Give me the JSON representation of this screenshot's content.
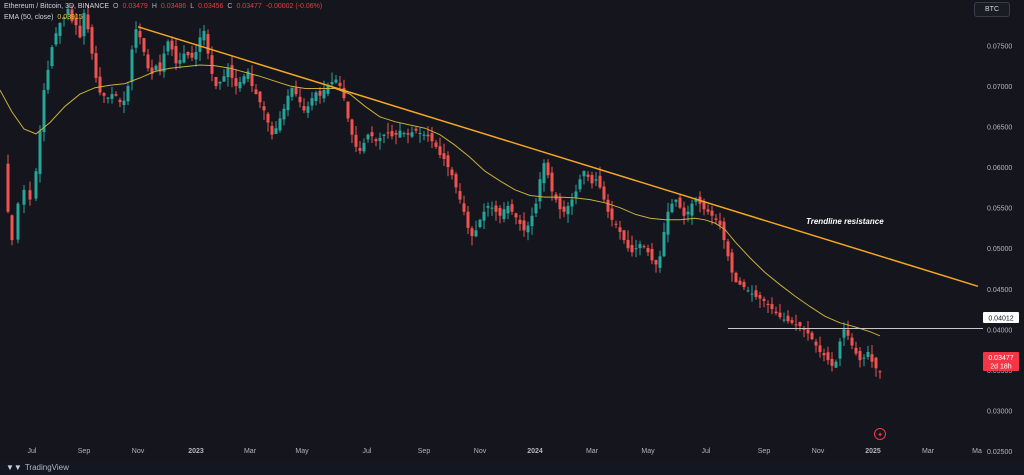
{
  "legend": {
    "symbol": "Ethereum / Bitcoin, 3D, BINANCE",
    "o_label": "O",
    "o": "0.03479",
    "h_label": "H",
    "h": "0.03486",
    "l_label": "L",
    "l": "0.03456",
    "c_label": "C",
    "c": "0.03477",
    "change": "-0.00002 (-0.06%)",
    "ema_label": "EMA (50, close)",
    "ema_value": "0.03915"
  },
  "badge": "BTC",
  "footer": {
    "brand": "TradingView",
    "icon": "tradingview-logo-icon"
  },
  "colors": {
    "background": "#14151d",
    "up": "#26a69a",
    "down": "#ef5350",
    "ema": "#c8b13a",
    "trendline": "#f5a623",
    "support_line": "#c8c8c8",
    "price_tag": "#f23645"
  },
  "chart_data": {
    "type": "candlestick",
    "title": "Ethereum / Bitcoin, 3D, BINANCE",
    "y_axis_ticks": [
      "0.07500",
      "0.07000",
      "0.06500",
      "0.06000",
      "0.05500",
      "0.05000",
      "0.04500",
      "0.04000",
      "0.03500",
      "0.03000",
      "0.02500"
    ],
    "x_axis_ticks": [
      "Jul",
      "Sep",
      "Nov",
      "2023",
      "Mar",
      "May",
      "Jul",
      "Sep",
      "Nov",
      "2024",
      "Mar",
      "May",
      "Jul",
      "Sep",
      "Nov",
      "2025",
      "Mar",
      "Ma"
    ],
    "ylim": [
      0.0245,
      0.0795
    ],
    "grid": false,
    "ema_points": [
      [
        0,
        0.0695
      ],
      [
        12,
        0.0668
      ],
      [
        24,
        0.0647
      ],
      [
        36,
        0.0641
      ],
      [
        50,
        0.0655
      ],
      [
        65,
        0.0675
      ],
      [
        80,
        0.069
      ],
      [
        95,
        0.0698
      ],
      [
        110,
        0.0701
      ],
      [
        125,
        0.0703
      ],
      [
        140,
        0.071
      ],
      [
        155,
        0.0718
      ],
      [
        170,
        0.0722
      ],
      [
        185,
        0.0724
      ],
      [
        200,
        0.0726
      ],
      [
        215,
        0.0725
      ],
      [
        230,
        0.0722
      ],
      [
        245,
        0.0717
      ],
      [
        260,
        0.0712
      ],
      [
        275,
        0.0706
      ],
      [
        290,
        0.07
      ],
      [
        305,
        0.0697
      ],
      [
        320,
        0.0697
      ],
      [
        335,
        0.0697
      ],
      [
        350,
        0.069
      ],
      [
        365,
        0.0675
      ],
      [
        380,
        0.0662
      ],
      [
        395,
        0.0656
      ],
      [
        410,
        0.0652
      ],
      [
        425,
        0.0648
      ],
      [
        440,
        0.064
      ],
      [
        455,
        0.0627
      ],
      [
        470,
        0.0612
      ],
      [
        485,
        0.0595
      ],
      [
        500,
        0.0583
      ],
      [
        515,
        0.0572
      ],
      [
        530,
        0.0565
      ],
      [
        545,
        0.0563
      ],
      [
        560,
        0.0563
      ],
      [
        575,
        0.0562
      ],
      [
        590,
        0.056
      ],
      [
        605,
        0.0556
      ],
      [
        620,
        0.055
      ],
      [
        635,
        0.0542
      ],
      [
        650,
        0.0537
      ],
      [
        665,
        0.0535
      ],
      [
        680,
        0.0535
      ],
      [
        695,
        0.0537
      ],
      [
        705,
        0.0535
      ],
      [
        715,
        0.0531
      ],
      [
        725,
        0.0523
      ],
      [
        735,
        0.0508
      ],
      [
        750,
        0.0488
      ],
      [
        765,
        0.047
      ],
      [
        780,
        0.0455
      ],
      [
        795,
        0.0441
      ],
      [
        810,
        0.0428
      ],
      [
        825,
        0.0416
      ],
      [
        840,
        0.0408
      ],
      [
        855,
        0.0403
      ],
      [
        870,
        0.0397
      ],
      [
        880,
        0.0392
      ]
    ],
    "trendline": {
      "label": "Trendline resistance",
      "from": [
        138,
        0.0773
      ],
      "to": [
        978,
        0.0453
      ]
    },
    "support_level": {
      "value": "0.04012",
      "from_x": 728,
      "level": 0.0401
    },
    "last_price": {
      "value": "0.03477",
      "countdown": "2d 18h"
    },
    "waypoints": [
      [
        4,
        0.06
      ],
      [
        8,
        0.0545
      ],
      [
        12,
        0.051
      ],
      [
        18,
        0.0555
      ],
      [
        24,
        0.0572
      ],
      [
        30,
        0.056
      ],
      [
        36,
        0.0595
      ],
      [
        40,
        0.0645
      ],
      [
        44,
        0.0695
      ],
      [
        48,
        0.072
      ],
      [
        52,
        0.0748
      ],
      [
        56,
        0.0765
      ],
      [
        60,
        0.0778
      ],
      [
        64,
        0.0785
      ],
      [
        68,
        0.0795
      ],
      [
        72,
        0.078
      ],
      [
        76,
        0.0775
      ],
      [
        80,
        0.076
      ],
      [
        84,
        0.079
      ],
      [
        88,
        0.077
      ],
      [
        92,
        0.074
      ],
      [
        96,
        0.071
      ],
      [
        100,
        0.0692
      ],
      [
        104,
        0.0688
      ],
      [
        108,
        0.0686
      ],
      [
        112,
        0.069
      ],
      [
        116,
        0.0688
      ],
      [
        120,
        0.068
      ],
      [
        124,
        0.0682
      ],
      [
        128,
        0.07
      ],
      [
        132,
        0.0745
      ],
      [
        136,
        0.077
      ],
      [
        140,
        0.076
      ],
      [
        144,
        0.0742
      ],
      [
        148,
        0.0722
      ],
      [
        152,
        0.0715
      ],
      [
        156,
        0.0725
      ],
      [
        160,
        0.0718
      ],
      [
        164,
        0.074
      ],
      [
        168,
        0.0755
      ],
      [
        172,
        0.0745
      ],
      [
        176,
        0.0728
      ],
      [
        180,
        0.0732
      ],
      [
        184,
        0.074
      ],
      [
        188,
        0.0738
      ],
      [
        192,
        0.0735
      ],
      [
        196,
        0.0742
      ],
      [
        200,
        0.076
      ],
      [
        204,
        0.0768
      ],
      [
        208,
        0.074
      ],
      [
        212,
        0.0715
      ],
      [
        216,
        0.07
      ],
      [
        220,
        0.0705
      ],
      [
        224,
        0.0712
      ],
      [
        228,
        0.0722
      ],
      [
        232,
        0.071
      ],
      [
        236,
        0.07
      ],
      [
        240,
        0.0705
      ],
      [
        244,
        0.0712
      ],
      [
        248,
        0.0718
      ],
      [
        252,
        0.07
      ],
      [
        256,
        0.069
      ],
      [
        260,
        0.068
      ],
      [
        264,
        0.067
      ],
      [
        268,
        0.0655
      ],
      [
        272,
        0.064
      ],
      [
        276,
        0.0648
      ],
      [
        280,
        0.066
      ],
      [
        284,
        0.0672
      ],
      [
        288,
        0.0688
      ],
      [
        292,
        0.0698
      ],
      [
        296,
        0.069
      ],
      [
        300,
        0.068
      ],
      [
        304,
        0.067
      ],
      [
        308,
        0.0675
      ],
      [
        312,
        0.0685
      ],
      [
        316,
        0.0692
      ],
      [
        320,
        0.0688
      ],
      [
        324,
        0.0695
      ],
      [
        328,
        0.07
      ],
      [
        332,
        0.0705
      ],
      [
        336,
        0.0708
      ],
      [
        340,
        0.07
      ],
      [
        344,
        0.0685
      ],
      [
        348,
        0.066
      ],
      [
        352,
        0.064
      ],
      [
        356,
        0.0625
      ],
      [
        360,
        0.062
      ],
      [
        364,
        0.063
      ],
      [
        368,
        0.064
      ],
      [
        372,
        0.0638
      ],
      [
        376,
        0.0632
      ],
      [
        380,
        0.0636
      ],
      [
        384,
        0.064
      ],
      [
        388,
        0.0642
      ],
      [
        392,
        0.0638
      ],
      [
        396,
        0.064
      ],
      [
        400,
        0.0645
      ],
      [
        404,
        0.0642
      ],
      [
        408,
        0.064
      ],
      [
        412,
        0.0643
      ],
      [
        416,
        0.0645
      ],
      [
        420,
        0.0642
      ],
      [
        424,
        0.064
      ],
      [
        428,
        0.0638
      ],
      [
        432,
        0.0632
      ],
      [
        436,
        0.0625
      ],
      [
        440,
        0.0615
      ],
      [
        444,
        0.061
      ],
      [
        448,
        0.06
      ],
      [
        452,
        0.059
      ],
      [
        456,
        0.0575
      ],
      [
        460,
        0.056
      ],
      [
        464,
        0.0545
      ],
      [
        468,
        0.0525
      ],
      [
        472,
        0.0515
      ],
      [
        476,
        0.0522
      ],
      [
        480,
        0.0535
      ],
      [
        484,
        0.0545
      ],
      [
        488,
        0.0552
      ],
      [
        492,
        0.055
      ],
      [
        496,
        0.0545
      ],
      [
        500,
        0.054
      ],
      [
        504,
        0.0548
      ],
      [
        508,
        0.0552
      ],
      [
        512,
        0.0545
      ],
      [
        516,
        0.0538
      ],
      [
        520,
        0.053
      ],
      [
        524,
        0.0522
      ],
      [
        528,
        0.0528
      ],
      [
        532,
        0.054
      ],
      [
        536,
        0.0555
      ],
      [
        540,
        0.0585
      ],
      [
        544,
        0.0605
      ],
      [
        548,
        0.059
      ],
      [
        552,
        0.057
      ],
      [
        556,
        0.056
      ],
      [
        560,
        0.0548
      ],
      [
        564,
        0.0545
      ],
      [
        568,
        0.0552
      ],
      [
        572,
        0.056
      ],
      [
        576,
        0.057
      ],
      [
        580,
        0.0585
      ],
      [
        584,
        0.0595
      ],
      [
        588,
        0.0588
      ],
      [
        592,
        0.058
      ],
      [
        596,
        0.0585
      ],
      [
        600,
        0.0575
      ],
      [
        604,
        0.056
      ],
      [
        608,
        0.0545
      ],
      [
        612,
        0.0535
      ],
      [
        616,
        0.053
      ],
      [
        620,
        0.052
      ],
      [
        624,
        0.051
      ],
      [
        628,
        0.05
      ],
      [
        632,
        0.0495
      ],
      [
        636,
        0.05
      ],
      [
        640,
        0.0505
      ],
      [
        644,
        0.0502
      ],
      [
        648,
        0.0495
      ],
      [
        652,
        0.0485
      ],
      [
        656,
        0.048
      ],
      [
        660,
        0.049
      ],
      [
        664,
        0.052
      ],
      [
        668,
        0.0545
      ],
      [
        672,
        0.0555
      ],
      [
        676,
        0.056
      ],
      [
        680,
        0.055
      ],
      [
        684,
        0.054
      ],
      [
        688,
        0.0545
      ],
      [
        692,
        0.0555
      ],
      [
        696,
        0.056
      ],
      [
        700,
        0.0555
      ],
      [
        704,
        0.0548
      ],
      [
        708,
        0.0545
      ],
      [
        712,
        0.054
      ],
      [
        716,
        0.0535
      ],
      [
        720,
        0.0528
      ],
      [
        724,
        0.051
      ],
      [
        728,
        0.049
      ],
      [
        732,
        0.047
      ],
      [
        736,
        0.0458
      ],
      [
        740,
        0.0455
      ],
      [
        744,
        0.0452
      ],
      [
        748,
        0.0448
      ],
      [
        752,
        0.0444
      ],
      [
        756,
        0.044
      ],
      [
        760,
        0.0438
      ],
      [
        764,
        0.0435
      ],
      [
        768,
        0.043
      ],
      [
        772,
        0.0425
      ],
      [
        776,
        0.042
      ],
      [
        780,
        0.0415
      ],
      [
        784,
        0.0412
      ],
      [
        788,
        0.041
      ],
      [
        792,
        0.0408
      ],
      [
        796,
        0.0406
      ],
      [
        800,
        0.0404
      ],
      [
        804,
        0.04
      ],
      [
        808,
        0.0395
      ],
      [
        812,
        0.0388
      ],
      [
        816,
        0.038
      ],
      [
        820,
        0.0372
      ],
      [
        824,
        0.0368
      ],
      [
        828,
        0.0362
      ],
      [
        832,
        0.0355
      ],
      [
        836,
        0.036
      ],
      [
        840,
        0.0385
      ],
      [
        844,
        0.04
      ],
      [
        848,
        0.0392
      ],
      [
        852,
        0.038
      ],
      [
        856,
        0.037
      ],
      [
        860,
        0.0362
      ],
      [
        864,
        0.0365
      ],
      [
        868,
        0.0372
      ],
      [
        872,
        0.036
      ],
      [
        876,
        0.0352
      ],
      [
        880,
        0.0348
      ]
    ]
  }
}
